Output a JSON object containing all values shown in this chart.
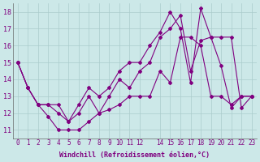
{
  "xlabel": "Windchill (Refroidissement éolien,°C)",
  "ylabel": "",
  "background_color": "#cce8e8",
  "line_color": "#800080",
  "grid_color": "#aacccc",
  "xlim": [
    -0.5,
    23.5
  ],
  "ylim": [
    10.5,
    18.5
  ],
  "xticks": [
    0,
    1,
    2,
    3,
    4,
    5,
    6,
    7,
    8,
    9,
    10,
    11,
    12,
    14,
    15,
    16,
    17,
    18,
    19,
    20,
    21,
    22,
    23
  ],
  "yticks": [
    11,
    12,
    13,
    14,
    15,
    16,
    17,
    18
  ],
  "series": [
    [
      15.0,
      13.5,
      12.5,
      11.8,
      11.0,
      11.0,
      11.0,
      11.5,
      12.0,
      12.2,
      12.5,
      13.0,
      13.0,
      13.0,
      14.5,
      13.8,
      16.5,
      16.5,
      16.0,
      13.0,
      13.0,
      12.5,
      13.0,
      13.0
    ],
    [
      15.0,
      13.5,
      12.5,
      12.5,
      12.0,
      11.5,
      12.0,
      13.0,
      12.0,
      13.0,
      14.0,
      13.5,
      14.5,
      15.0,
      16.5,
      17.0,
      17.8,
      14.5,
      16.3,
      16.5,
      14.8,
      12.3,
      13.0,
      13.0
    ],
    [
      15.0,
      13.5,
      12.5,
      12.5,
      12.5,
      11.5,
      12.5,
      13.5,
      13.0,
      13.5,
      14.5,
      15.0,
      15.0,
      16.0,
      16.8,
      18.0,
      17.0,
      13.8,
      18.2,
      16.5,
      16.5,
      16.5,
      12.3,
      13.0
    ]
  ]
}
